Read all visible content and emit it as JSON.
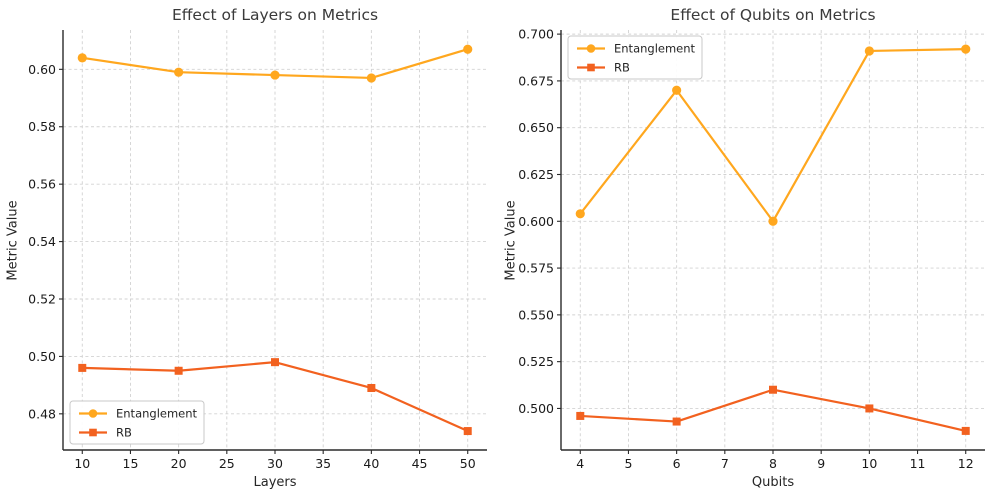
{
  "page": {
    "background": "#ffffff"
  },
  "chart_data": [
    {
      "type": "line",
      "title": "Effect of Layers on Metrics",
      "xlabel": "Layers",
      "ylabel": "Metric Value",
      "x": [
        10,
        20,
        30,
        40,
        50
      ],
      "series": [
        {
          "name": "Entanglement",
          "color": "#FFA71E",
          "marker": "circle",
          "values": [
            0.604,
            0.599,
            0.598,
            0.597,
            0.607
          ]
        },
        {
          "name": "RB",
          "color": "#F2611F",
          "marker": "square",
          "values": [
            0.496,
            0.495,
            0.498,
            0.489,
            0.474
          ]
        }
      ],
      "xlim": [
        8,
        52
      ],
      "ylim": [
        0.4674,
        0.6137
      ],
      "xticks": [
        10,
        15,
        20,
        25,
        30,
        35,
        40,
        45,
        50
      ],
      "yticks": [
        0.48,
        0.5,
        0.52,
        0.54,
        0.56,
        0.58,
        0.6
      ],
      "ytick_decimals": 2,
      "grid": true,
      "legend_position": "lower-left",
      "style": {
        "grid_color": "#d2d2d2",
        "spine_color": "#2a2a2a",
        "tick_color": "#1a1a1a",
        "title_color": "#3a3a3a",
        "legend_border": "#c8c8c8",
        "legend_bg": "#ffffff"
      }
    },
    {
      "type": "line",
      "title": "Effect of Qubits on Metrics",
      "xlabel": "Qubits",
      "ylabel": "Metric Value",
      "x": [
        4,
        6,
        8,
        10,
        12
      ],
      "series": [
        {
          "name": "Entanglement",
          "color": "#FFA71E",
          "marker": "circle",
          "values": [
            0.604,
            0.67,
            0.6,
            0.691,
            0.692
          ]
        },
        {
          "name": "RB",
          "color": "#F2611F",
          "marker": "square",
          "values": [
            0.496,
            0.493,
            0.51,
            0.5,
            0.488
          ]
        }
      ],
      "xlim": [
        3.6,
        12.4
      ],
      "ylim": [
        0.4778,
        0.7022
      ],
      "xticks": [
        4,
        5,
        6,
        7,
        8,
        9,
        10,
        11,
        12
      ],
      "yticks": [
        0.5,
        0.525,
        0.55,
        0.575,
        0.6,
        0.625,
        0.65,
        0.675,
        0.7
      ],
      "ytick_decimals": 3,
      "grid": true,
      "legend_position": "upper-left",
      "style": {
        "grid_color": "#d2d2d2",
        "spine_color": "#2a2a2a",
        "tick_color": "#1a1a1a",
        "title_color": "#3a3a3a",
        "legend_border": "#c8c8c8",
        "legend_bg": "#ffffff"
      }
    }
  ]
}
